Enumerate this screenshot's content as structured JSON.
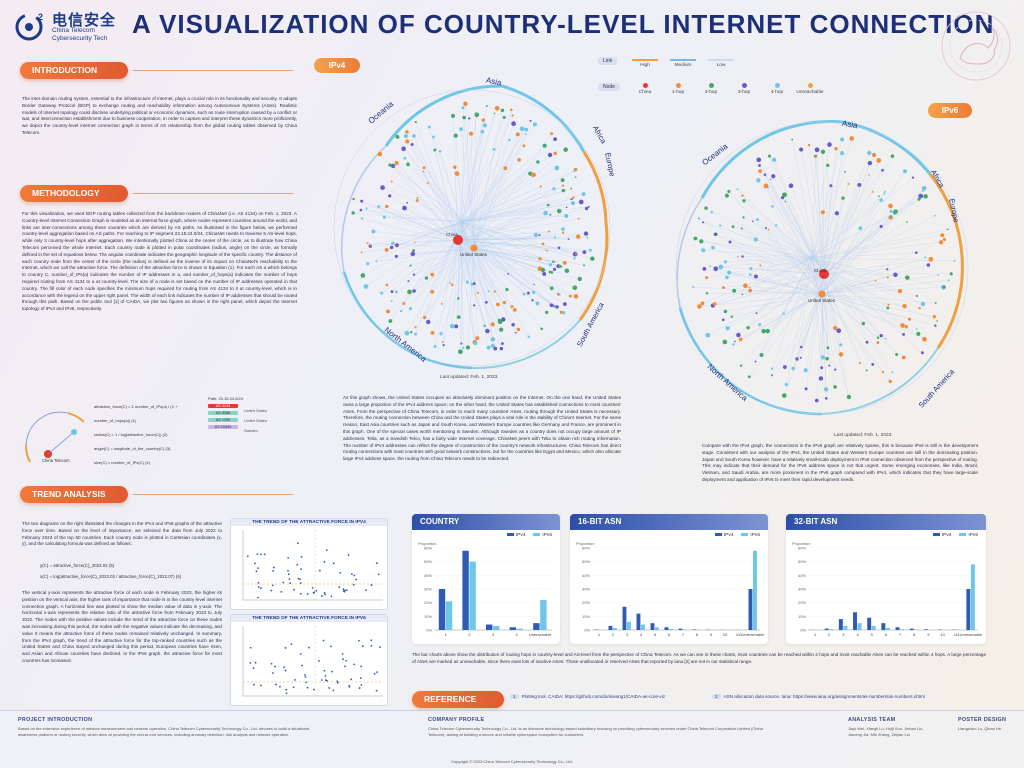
{
  "header": {
    "logo_cn": "电信安全",
    "logo_en": "China Telecom Cybersecurity Tech",
    "title": "A VISUALIZATION OF COUNTRY-LEVEL INTERNET CONNECTION"
  },
  "colors": {
    "navy": "#1e2f7a",
    "orange": "#ec7c36",
    "blue": "#2f5bb5",
    "light_blue": "#6ec6e8"
  },
  "introduction": {
    "heading": "INTRODUCTION",
    "body": "The inter-domain routing system, essential to the infrastructure of internet, plays a crucial role in its functionality and security. It adopts Border Gateway Protocol (BGP) to exchange routing and reachability information among Autonomous Systems (ASes). Realistic models of Internet topology could disclose underlying political or economic dynamics, such as route interruption caused by a conflict or war, and interconnection establishment due to business cooperation. In order to capture and interpret these dynamics more proficiently, we depict the country-level internet connection graph in terms of AS relationship from the global routing tables observed by China Telecom."
  },
  "methodology": {
    "heading": "METHODOLOGY",
    "body": "For this visualization, we used BGP routing tables collected from the backbone routers of ChinaNet (i.e. AS 4134) on Feb. 1, 2023. A Country-level Internet Connection Graph is modeled as an internal force graph, where nodes represent countries around the world, and links are inter-connections among these countries which are derived by AS paths. As illustrated in the figure below, we performed country-level aggregation based on AS paths. For reaching to IP segment 23.15.24.0/24, ChinaNet needs to traverse 5 AS-level hops, while only 3 country-level hops after aggregation. We intentionally plotted China at the center of the circle, as to illustrate how China Telecom perceived the whole Internet. Each country node is plotted in polar coordinates (radius, angle) on the circle, as formally defined in the set of equations below. The angular coordinate indicates the geographic longitude of the specific country. The distance of each country node from the center of the circle (the radius) is defined as the inverse of its impact on ChinaNet's reachability to the Internet, which we call the attractive force. The definition of the attractive force is shown in Equation (1). For each AS a which belongs to country C, number_of_IPs(a) indicates the number of IP addresses in a, and number_of_hops(a) indicates the number of hops required routing from AS 4134 to a at country-level. The size of a node is set based on the number of IP addresses operated in that country. The fill color of each node specifies the minimum hops required for routing from AS 4134 to it at country-level, which is in accordance with the legend on the upper right panel. The width of each link indicates the number of IP addresses that should be routed through this path. Based on the public tool [1] of CAIDA, we plot two figures as shown in the right panel, which depict the Internet topology of IPv4 and IPv6, respectively.",
    "eq_lines": [
      "attractive_force(C) = Σ number_of_IPs(a) / (1 + number_of_hops(a))   (1)",
      "radius(C) = 1 / log(attractive_force(C))   (2)",
      "angle(C) = longitude_of_the_country(C)   (3)",
      "size(C) = number_of_IPs(C)   (4)"
    ],
    "path_label": "Path: 23.15.24.0/24",
    "path_nodes": [
      "AS 4134",
      "AS 3356",
      "AS 1299",
      "AS 20940"
    ],
    "node_label": "China Telecom",
    "path_side": [
      "United States",
      "United States",
      "Sweden"
    ]
  },
  "ipv4": {
    "tag": "IPv4",
    "updated": "Last updated: Feb. 1, 2023.",
    "regions": [
      "Asia",
      "Oceania",
      "Africa",
      "Europe",
      "South America",
      "North America"
    ],
    "center_labels": [
      "China",
      "United States"
    ]
  },
  "ipv6": {
    "tag": "IPv6",
    "updated": "Last updated: Feb. 1, 2023.",
    "regions": [
      "Asia",
      "Oceania",
      "Africa",
      "Europe",
      "South America",
      "North America"
    ],
    "center_labels": [
      "China",
      "United States"
    ]
  },
  "legend": {
    "link_label": "Link",
    "node_label": "Node",
    "link_items": [
      "High",
      "Medium",
      "Low"
    ],
    "node_items": [
      {
        "label": "China",
        "color": "#e53935"
      },
      {
        "label": "1-hop",
        "color": "#f08c3a"
      },
      {
        "label": "2-hop",
        "color": "#43a96b"
      },
      {
        "label": "3-hop",
        "color": "#6a5acd"
      },
      {
        "label": "4-hop",
        "color": "#6ec6e8"
      },
      {
        "label": "Unreachable",
        "color": "#f0a040"
      }
    ]
  },
  "ipv4_text": "As this graph shows, the United States occupies an absolutely dominant position on the Internet. On the one hand, the United States owns a large proportion of the IPv4 address space; on the other hand, the United States has established connections to most countries' ASes. From the perspective of China Telecom, in order to reach many countries' ASes, routing through the United States is necessary. Therefore, the routing connection between China and the United States plays a vital role in the stability of China's Internet. For the same reason, East Asia countries such as Japan and South Korea, and Western Europe countries like Germany and France, are prominent in this graph. One of the special cases worth mentioning is Sweden. Although Sweden as a country does not occupy large amount of IP addresses, Telia, as a Swedish Telco, has a fairly wide Internet coverage. ChinaNet peers with Telia to obtain rich routing information. The number of IPv4 addresses can reflect the degree of construction of the country's network infrastructures. China Telecom has direct routing connections with most countries with good network constructions, but for the countries like Egypt and Mexico, which also allocate large IPv4 address space, the routing from China Telecom needs to be redirected.",
  "ipv6_text": "Compare with the IPv4 graph, the connections in the IPv6 graph are relatively sparse, this is because IPv6 is still in the development stage. Consistent with our analysis of the IPv4, the United States and Western Europe countries are still in the dominating position. Japan and South Korea however, have a relatively small-scale deployment in IPv6 connection observed from the perspective of routing. This may indicate that their demand for the IPv6 address space is not that urgent. Some emerging economies, like India, Brazil, Vietnam, and Saudi Arabia, are more prominent in the IPv6 graph compared with IPv4, which indicates that they have large-scale deployment and application of IPv6 to meet their rapid development needs.",
  "trend": {
    "heading": "TREND ANALYSIS",
    "body1": "The two diagrams on the right illustrated the changes in the IPv4 and IPv6 graphs of the attractive force over time. Based on the level of importance, we selected the data from July 2022 to February 2023 of the top 60 countries. Each country node is plotted in Cartesian coordinates (x, y), and the calculating formula was defined as follows:",
    "eq1": "y(C) = attractive_force(C)_2023.02   (5)",
    "eq2": "x(C) = log(attractive_force(C)_2023.02 / attractive_force(C)_2022.07)   (6)",
    "body2": "The vertical y-axis represents the attractive force of each node in February 2023, the higher its position on the vertical axis, the higher rank of importance that node is in the country-level internet connection graph. A horizontal line was plotted to show the median value of data in y-axis. The horizontal x-axis represents the relative ratio of the attractive force from February 2023 to July 2022. The nodes with the positive values include the trend of the attractive force on these nodes was increasing during this period, the nodes with the negative values indicate the decreasing, and value 0 means the attractive force of these nodes remained relatively unchanged. In summary, from the IPv4 graph, the trend of the attractive force for the top-ranked countries such as the United States and China stayed unchanged during this period, European countries have risen, and Asian and African countries have declined. In the IPv6 graph, the attractive force for most countries has increased.",
    "chart1_title": "THE TREND OF THE ATTRACTIVE FORCE IN IPV4",
    "chart2_title": "THE TREND OF THE ATTRACTIVE FORCE IN IPV6"
  },
  "bar_caption": "The bar charts above show the distribution of routing hops in country-level and AS-level from the perspective of China Telecom. As we can see in these charts, most countries can be reached within 2 hops and most reachable ASes can be reached within 4 hops. A large percentage of ASes are marked as unreachable, since there exist lots of inactive ASes. Those unallocated or reserved ASes that reported by iana [2] are not in our statistical range.",
  "chart_data": [
    {
      "type": "bar",
      "title": "COUNTRY",
      "ylabel": "Proportion",
      "ylim": [
        0,
        0.6
      ],
      "yticks": [
        "0%",
        "10%",
        "20%",
        "30%",
        "40%",
        "50%",
        "60%"
      ],
      "categories": [
        "1",
        "2",
        "3",
        "4",
        "Unreachable"
      ],
      "series": [
        {
          "name": "IPv4",
          "values": [
            0.3,
            0.58,
            0.04,
            0.02,
            0.05
          ]
        },
        {
          "name": "IPv6",
          "values": [
            0.21,
            0.5,
            0.03,
            0.01,
            0.22
          ]
        }
      ]
    },
    {
      "type": "bar",
      "title": "16-BIT ASN",
      "ylabel": "Proportion",
      "ylim": [
        0,
        0.6
      ],
      "yticks": [
        "0%",
        "10%",
        "20%",
        "30%",
        "40%",
        "50%",
        "60%"
      ],
      "categories": [
        "1",
        "2",
        "3",
        "4",
        "5",
        "6",
        "7",
        "8",
        "9",
        "10",
        "≥11",
        "Unreachable"
      ],
      "series": [
        {
          "name": "IPv4",
          "values": [
            0.003,
            0.03,
            0.17,
            0.12,
            0.05,
            0.02,
            0.01,
            0.004,
            0.002,
            0.001,
            0.001,
            0.3
          ]
        },
        {
          "name": "IPv6",
          "values": [
            0.002,
            0.015,
            0.06,
            0.04,
            0.02,
            0.008,
            0.003,
            0.001,
            0.001,
            0.0,
            0.0,
            0.58
          ]
        }
      ]
    },
    {
      "type": "bar",
      "title": "32-BIT ASN",
      "ylabel": "Proportion",
      "ylim": [
        0,
        0.6
      ],
      "yticks": [
        "0%",
        "10%",
        "20%",
        "30%",
        "40%",
        "50%",
        "60%"
      ],
      "categories": [
        "1",
        "2",
        "3",
        "4",
        "5",
        "6",
        "7",
        "8",
        "9",
        "10",
        "≥11",
        "Unreachable"
      ],
      "series": [
        {
          "name": "IPv4",
          "values": [
            0.001,
            0.01,
            0.08,
            0.13,
            0.09,
            0.05,
            0.02,
            0.01,
            0.005,
            0.003,
            0.002,
            0.3
          ]
        },
        {
          "name": "IPv6",
          "values": [
            0.001,
            0.006,
            0.03,
            0.05,
            0.03,
            0.015,
            0.006,
            0.003,
            0.001,
            0.001,
            0.001,
            0.48
          ]
        }
      ]
    }
  ],
  "reference": {
    "heading": "REFERENCE",
    "items": [
      {
        "num": "1",
        "text": "Plotting tool. CAIDA: https://github.com/doriswang1/CAIDA-as-core-viz"
      },
      {
        "num": "2",
        "text": "ASN allocation data source. Iana: https://www.iana.org/assignments/as-numbers/as-numbers.xhtml"
      }
    ]
  },
  "footer": {
    "col1_h": "PROJECT INTRODUCTION",
    "col1": "Based on the extensive experience of network measurement and network operation, China Telecom Cybersecurity Technology Co., Ltd. devotes to build a situational awareness platform of routing security, which aims at providing the end-to-end services, including anomaly detection, risk analysis and network operation.",
    "col2_h": "COMPANY PROFILE",
    "col2": "China Telecom Cybersecurity Technology Co., Ltd. is an intensive technology-based subsidiary focusing on providing cybersecurity services under China Telecom Corporation Limited (China Telecom), aiming at building a secure and reliable cyberspace ecosystem for customers.",
    "col3_h": "ANALYSIS TEAM",
    "col3": "Jiayi Wei, Xiangli Lu, Huiji Sun, Jinhao Liu, Jianeng Jia, Min Zhang, Zhijian Liu",
    "col4_h": "POSTER DESIGN",
    "col4": "Liangzhuo Lu, Qihao He",
    "copyright": "Copyright © 2023 China Telecom Cybersecurity Technology Co., Ltd."
  }
}
